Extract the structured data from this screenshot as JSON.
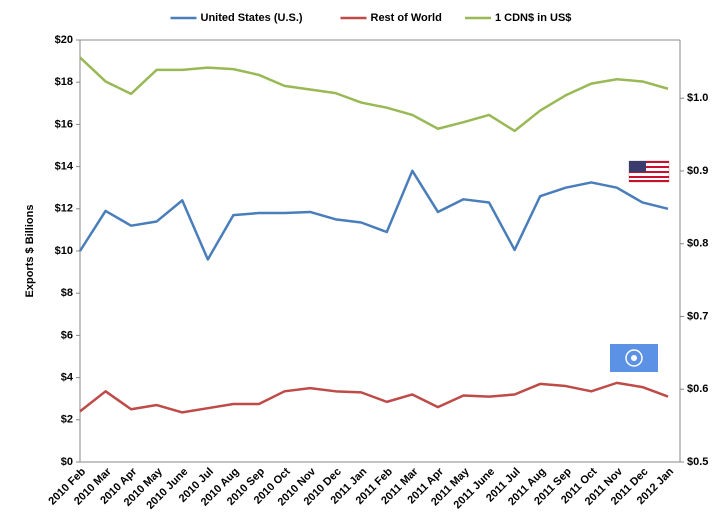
{
  "chart_data": {
    "type": "line",
    "y_label": "Exports $ Billions",
    "legend": "top",
    "categories": [
      "2010 Feb",
      "2010 Mar",
      "2010 Apr",
      "2010 May",
      "2010 June",
      "2010 Jul",
      "2010 Aug",
      "2010 Sep",
      "2010 Oct",
      "2010 Nov",
      "2010 Dec",
      "2011 Jan",
      "2011 Feb",
      "2011 Mar",
      "2011 Apr",
      "2011 May",
      "2011 June",
      "2011 Jul",
      "2011 Aug",
      "2011 Sep",
      "2011 Oct",
      "2011 Nov",
      "2011 Dec",
      "2012 Jan"
    ],
    "series": [
      {
        "name": "United States (U.S.)",
        "color": "#4a7ebb",
        "values": [
          10.0,
          11.9,
          11.2,
          11.4,
          12.4,
          9.6,
          11.7,
          11.8,
          11.8,
          11.85,
          11.5,
          11.35,
          10.9,
          13.8,
          11.85,
          12.45,
          12.3,
          10.05,
          12.6,
          13.0,
          13.25,
          13.0,
          12.3,
          12.0
        ]
      },
      {
        "name": "Rest of World",
        "color": "#be4b48",
        "values": [
          2.4,
          3.35,
          2.5,
          2.7,
          2.35,
          2.55,
          2.75,
          2.75,
          3.35,
          3.5,
          3.35,
          3.3,
          2.85,
          3.2,
          2.6,
          3.15,
          3.1,
          3.2,
          3.7,
          3.6,
          3.35,
          3.75,
          3.55,
          3.1
        ]
      },
      {
        "name": "1 CDN$ in US$",
        "color": "#98b954",
        "axis": "y2",
        "values": [
          1.056,
          1.023,
          1.006,
          1.039,
          1.039,
          1.042,
          1.04,
          1.032,
          1.017,
          1.012,
          1.007,
          0.994,
          0.987,
          0.977,
          0.958,
          0.967,
          0.977,
          0.955,
          0.983,
          1.004,
          1.02,
          1.026,
          1.023,
          1.013
        ]
      }
    ],
    "ylim": [
      0,
      20
    ],
    "yticks": [
      {
        "value": 0,
        "label": "$0"
      },
      {
        "value": 2,
        "label": "$2"
      },
      {
        "value": 4,
        "label": "$4"
      },
      {
        "value": 6,
        "label": "$6"
      },
      {
        "value": 8,
        "label": "$8"
      },
      {
        "value": 10,
        "label": "$10"
      },
      {
        "value": 12,
        "label": "$12"
      },
      {
        "value": 14,
        "label": "$14"
      },
      {
        "value": 16,
        "label": "$16"
      },
      {
        "value": 18,
        "label": "$18"
      },
      {
        "value": 20,
        "label": "$20"
      }
    ],
    "y2lim": [
      0.5,
      1.08
    ],
    "y2ticks": [
      {
        "value": 0.5,
        "label": "$0.5"
      },
      {
        "value": 0.6,
        "label": "$0.6"
      },
      {
        "value": 0.7,
        "label": "$0.7"
      },
      {
        "value": 0.8,
        "label": "$0.8"
      },
      {
        "value": 0.9,
        "label": "$0.9"
      },
      {
        "value": 1.0,
        "label": "$1.0"
      }
    ]
  }
}
